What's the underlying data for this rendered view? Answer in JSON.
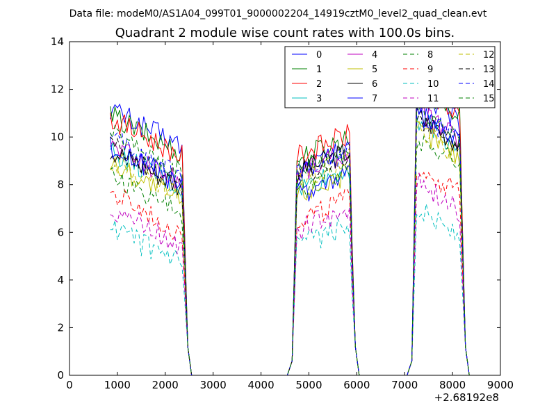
{
  "figure": {
    "suptitle": "Data file: modeM0/AS1A04_099T01_9000002204_14919cztM0_level2_quad_clean.evt",
    "x_offset_label": "+2.68192e8"
  },
  "chart_data": {
    "type": "line",
    "title": "Quadrant 2 module wise count rates with 100.0s bins.",
    "xlabel": "",
    "ylabel": "",
    "xlim": [
      0,
      9000
    ],
    "ylim": [
      0,
      14
    ],
    "x_ticks": [
      "0",
      "1000",
      "2000",
      "3000",
      "4000",
      "5000",
      "6000",
      "7000",
      "8000",
      "9000"
    ],
    "y_ticks": [
      "0",
      "2",
      "4",
      "6",
      "8",
      "10",
      "12",
      "14"
    ],
    "grid": false,
    "legend_placement": "top-right",
    "legend_columns": 4,
    "x_segments": [
      {
        "start": 850,
        "end": 2350
      },
      {
        "start": 4750,
        "end": 5850
      },
      {
        "start": 7250,
        "end": 8150
      }
    ],
    "series": [
      {
        "name": "0",
        "color": "#0000ff",
        "dash": "solid",
        "levels": [
          10.6,
          9.0,
          11.0
        ]
      },
      {
        "name": "1",
        "color": "#008000",
        "dash": "solid",
        "levels": [
          10.3,
          9.5,
          11.3
        ]
      },
      {
        "name": "2",
        "color": "#ff0000",
        "dash": "solid",
        "levels": [
          10.2,
          9.6,
          11.2
        ]
      },
      {
        "name": "3",
        "color": "#00bfbf",
        "dash": "solid",
        "levels": [
          8.8,
          8.2,
          10.0
        ]
      },
      {
        "name": "4",
        "color": "#bf00bf",
        "dash": "solid",
        "levels": [
          9.1,
          8.9,
          10.3
        ]
      },
      {
        "name": "5",
        "color": "#bfbf00",
        "dash": "solid",
        "levels": [
          8.3,
          8.0,
          9.6
        ]
      },
      {
        "name": "6",
        "color": "#000000",
        "dash": "solid",
        "levels": [
          8.9,
          8.9,
          10.1
        ]
      },
      {
        "name": "7",
        "color": "#0000ff",
        "dash": "solid",
        "levels": [
          9.0,
          8.0,
          10.2
        ]
      },
      {
        "name": "8",
        "color": "#008000",
        "dash": "dashed",
        "levels": [
          7.8,
          8.2,
          9.2
        ]
      },
      {
        "name": "9",
        "color": "#ff0000",
        "dash": "dashed",
        "levels": [
          7.0,
          6.9,
          8.0
        ]
      },
      {
        "name": "10",
        "color": "#00bfbf",
        "dash": "dashed",
        "levels": [
          5.6,
          5.8,
          6.3
        ]
      },
      {
        "name": "11",
        "color": "#bf00bf",
        "dash": "dashed",
        "levels": [
          6.4,
          6.5,
          7.3
        ]
      },
      {
        "name": "12",
        "color": "#bfbf00",
        "dash": "dashed",
        "levels": [
          8.5,
          8.6,
          9.6
        ]
      },
      {
        "name": "13",
        "color": "#000000",
        "dash": "dashed",
        "levels": [
          9.0,
          8.8,
          10.0
        ]
      },
      {
        "name": "14",
        "color": "#0000ff",
        "dash": "dashed",
        "levels": [
          9.3,
          8.9,
          10.2
        ]
      },
      {
        "name": "15",
        "color": "#008000",
        "dash": "dashed",
        "levels": [
          9.5,
          9.0,
          10.5
        ]
      }
    ]
  }
}
